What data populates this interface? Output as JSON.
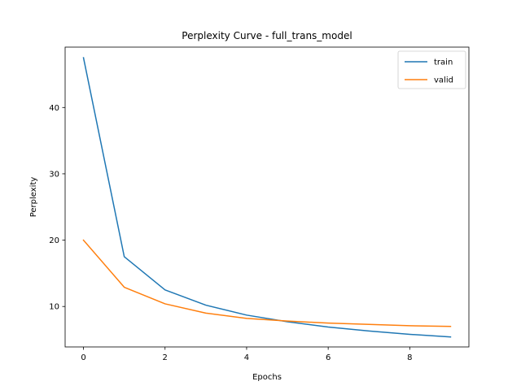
{
  "chart_data": {
    "type": "line",
    "title": "Perplexity Curve - full_trans_model",
    "xlabel": "Epochs",
    "ylabel": "Perplexity",
    "x": [
      0,
      1,
      2,
      3,
      4,
      5,
      6,
      7,
      8,
      9
    ],
    "xlim": [
      -0.45,
      9.45
    ],
    "ylim": [
      3.9,
      49.1
    ],
    "xticks": [
      0,
      2,
      4,
      6,
      8
    ],
    "yticks": [
      10,
      20,
      30,
      40
    ],
    "grid": false,
    "legend_position": "top-right",
    "series": [
      {
        "name": "train",
        "color": "#1f77b4",
        "values": [
          47.5,
          17.5,
          12.5,
          10.2,
          8.7,
          7.7,
          6.9,
          6.3,
          5.8,
          5.4
        ]
      },
      {
        "name": "valid",
        "color": "#ff7f0e",
        "values": [
          20.0,
          12.9,
          10.4,
          9.0,
          8.2,
          7.8,
          7.5,
          7.3,
          7.1,
          7.0
        ]
      }
    ]
  }
}
